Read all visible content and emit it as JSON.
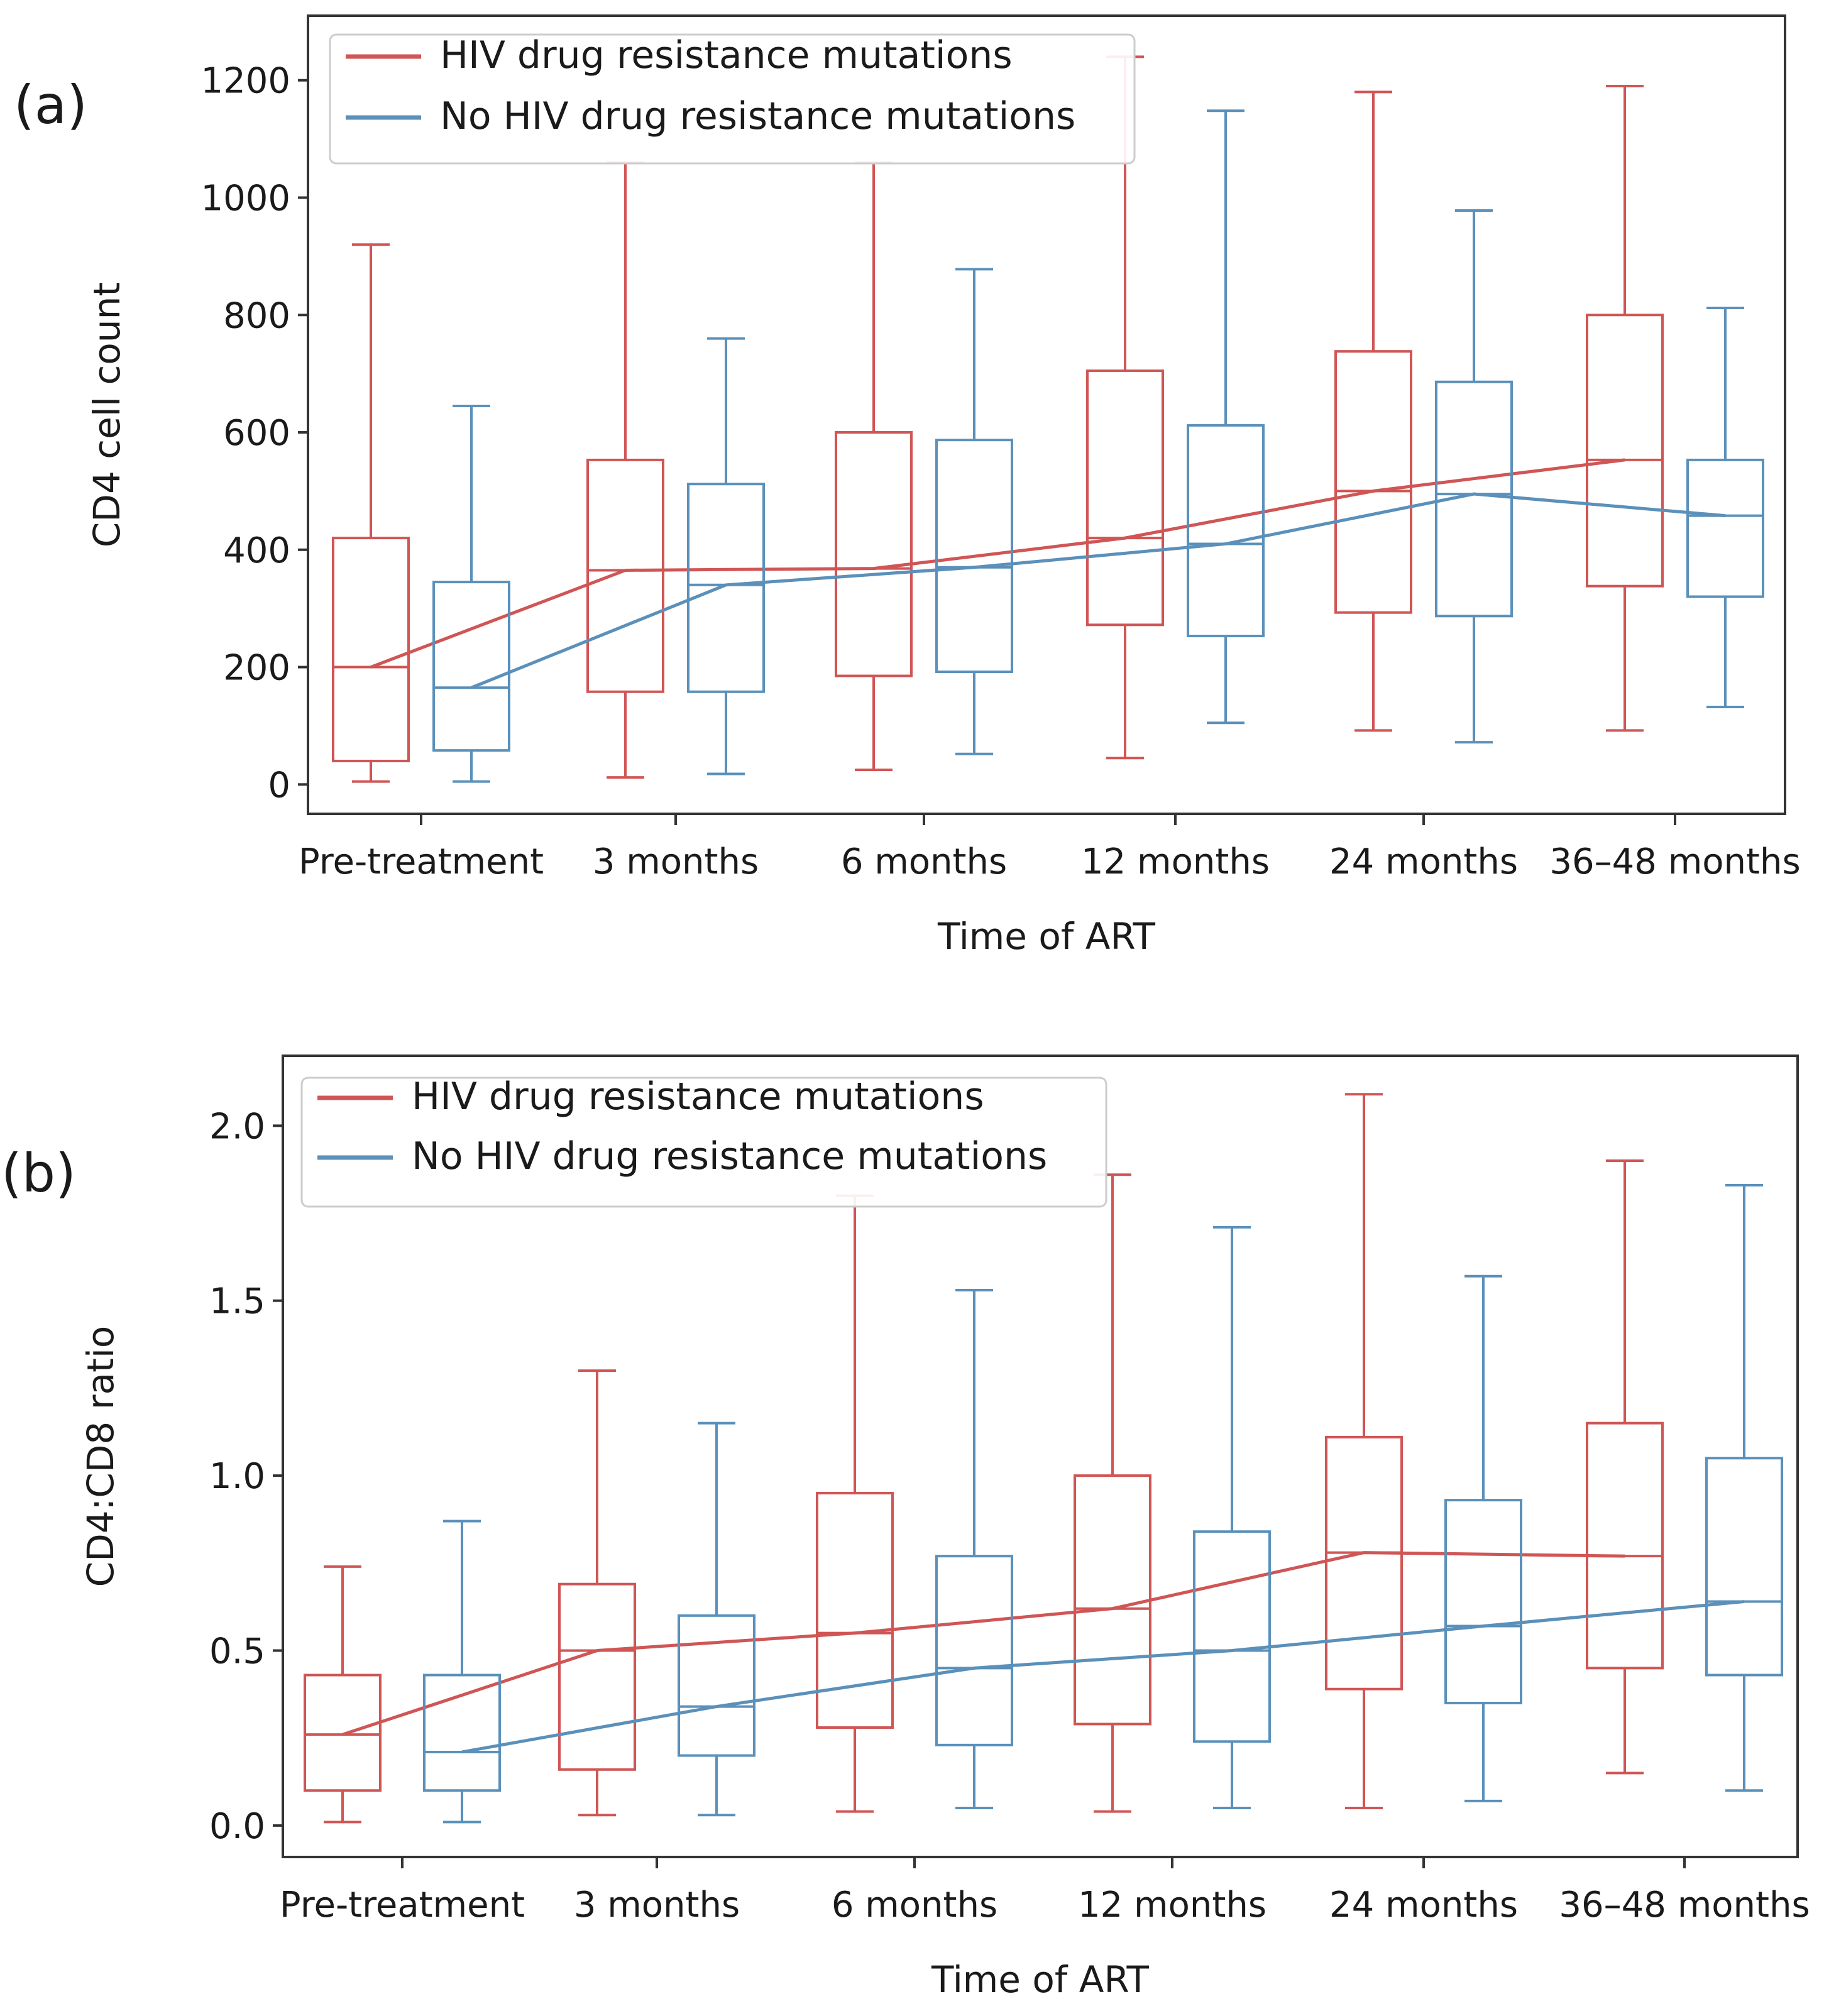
{
  "colors": {
    "red": "#d05555",
    "blue": "#5a90ba",
    "frame": "#333333"
  },
  "chart_data": [
    {
      "type": "box",
      "panel_label": "(a)",
      "title": "",
      "xlabel": "Time of ART",
      "ylabel": "CD4 cell count",
      "ylim": [
        -50,
        1310
      ],
      "yticks": [
        0,
        200,
        400,
        600,
        800,
        1000,
        1200
      ],
      "ytick_labels": [
        "0",
        "200",
        "400",
        "600",
        "800",
        "1000",
        "1200"
      ],
      "categories": [
        "Pre-treatment",
        "3 months",
        "6 months",
        "12 months",
        "24 months",
        "36–48 months"
      ],
      "legend": [
        "HIV drug resistance mutations",
        "No HIV drug resistance mutations"
      ],
      "series": [
        {
          "name": "HIV drug resistance mutations",
          "color": "red",
          "boxes": [
            {
              "whislo": 5,
              "q1": 40,
              "med": 200,
              "q3": 420,
              "whishi": 920
            },
            {
              "whislo": 12,
              "q1": 158,
              "med": 365,
              "q3": 553,
              "whishi": 1060
            },
            {
              "whislo": 25,
              "q1": 185,
              "med": 368,
              "q3": 600,
              "whishi": 1060
            },
            {
              "whislo": 45,
              "q1": 272,
              "med": 420,
              "q3": 705,
              "whishi": 1240
            },
            {
              "whislo": 92,
              "q1": 293,
              "med": 500,
              "q3": 738,
              "whishi": 1180
            },
            {
              "whislo": 92,
              "q1": 338,
              "med": 553,
              "q3": 800,
              "whishi": 1190
            }
          ]
        },
        {
          "name": "No HIV drug resistance mutations",
          "color": "blue",
          "boxes": [
            {
              "whislo": 5,
              "q1": 58,
              "med": 165,
              "q3": 345,
              "whishi": 645
            },
            {
              "whislo": 18,
              "q1": 158,
              "med": 340,
              "q3": 512,
              "whishi": 760
            },
            {
              "whislo": 52,
              "q1": 192,
              "med": 370,
              "q3": 587,
              "whishi": 878
            },
            {
              "whislo": 105,
              "q1": 253,
              "med": 410,
              "q3": 612,
              "whishi": 1148
            },
            {
              "whislo": 72,
              "q1": 287,
              "med": 495,
              "q3": 686,
              "whishi": 978
            },
            {
              "whislo": 132,
              "q1": 320,
              "med": 458,
              "q3": 553,
              "whishi": 812
            }
          ]
        }
      ]
    },
    {
      "type": "box",
      "panel_label": "(b)",
      "title": "",
      "xlabel": "Time of ART",
      "ylabel": "CD4:CD8 ratio",
      "ylim": [
        -0.09,
        2.2
      ],
      "yticks": [
        0.0,
        0.5,
        1.0,
        1.5,
        2.0
      ],
      "ytick_labels": [
        "0.0",
        "0.5",
        "1.0",
        "1.5",
        "2.0"
      ],
      "categories": [
        "Pre-treatment",
        "3 months",
        "6 months",
        "12 months",
        "24 months",
        "36–48 months"
      ],
      "legend": [
        "HIV drug resistance mutations",
        "No HIV drug resistance mutations"
      ],
      "series": [
        {
          "name": "HIV drug resistance mutations",
          "color": "red",
          "boxes": [
            {
              "whislo": 0.01,
              "q1": 0.1,
              "med": 0.26,
              "q3": 0.43,
              "whishi": 0.74
            },
            {
              "whislo": 0.03,
              "q1": 0.16,
              "med": 0.5,
              "q3": 0.69,
              "whishi": 1.3
            },
            {
              "whislo": 0.04,
              "q1": 0.28,
              "med": 0.55,
              "q3": 0.95,
              "whishi": 1.8
            },
            {
              "whislo": 0.04,
              "q1": 0.29,
              "med": 0.62,
              "q3": 1.0,
              "whishi": 1.86
            },
            {
              "whislo": 0.05,
              "q1": 0.39,
              "med": 0.78,
              "q3": 1.11,
              "whishi": 2.09
            },
            {
              "whislo": 0.15,
              "q1": 0.45,
              "med": 0.77,
              "q3": 1.15,
              "whishi": 1.9
            }
          ]
        },
        {
          "name": "No HIV drug resistance mutations",
          "color": "blue",
          "boxes": [
            {
              "whislo": 0.01,
              "q1": 0.1,
              "med": 0.21,
              "q3": 0.43,
              "whishi": 0.87
            },
            {
              "whislo": 0.03,
              "q1": 0.2,
              "med": 0.34,
              "q3": 0.6,
              "whishi": 1.15
            },
            {
              "whislo": 0.05,
              "q1": 0.23,
              "med": 0.45,
              "q3": 0.77,
              "whishi": 1.53
            },
            {
              "whislo": 0.05,
              "q1": 0.24,
              "med": 0.5,
              "q3": 0.84,
              "whishi": 1.71
            },
            {
              "whislo": 0.07,
              "q1": 0.35,
              "med": 0.57,
              "q3": 0.93,
              "whishi": 1.57
            },
            {
              "whislo": 0.1,
              "q1": 0.43,
              "med": 0.64,
              "q3": 1.05,
              "whishi": 1.83
            }
          ]
        }
      ]
    }
  ]
}
